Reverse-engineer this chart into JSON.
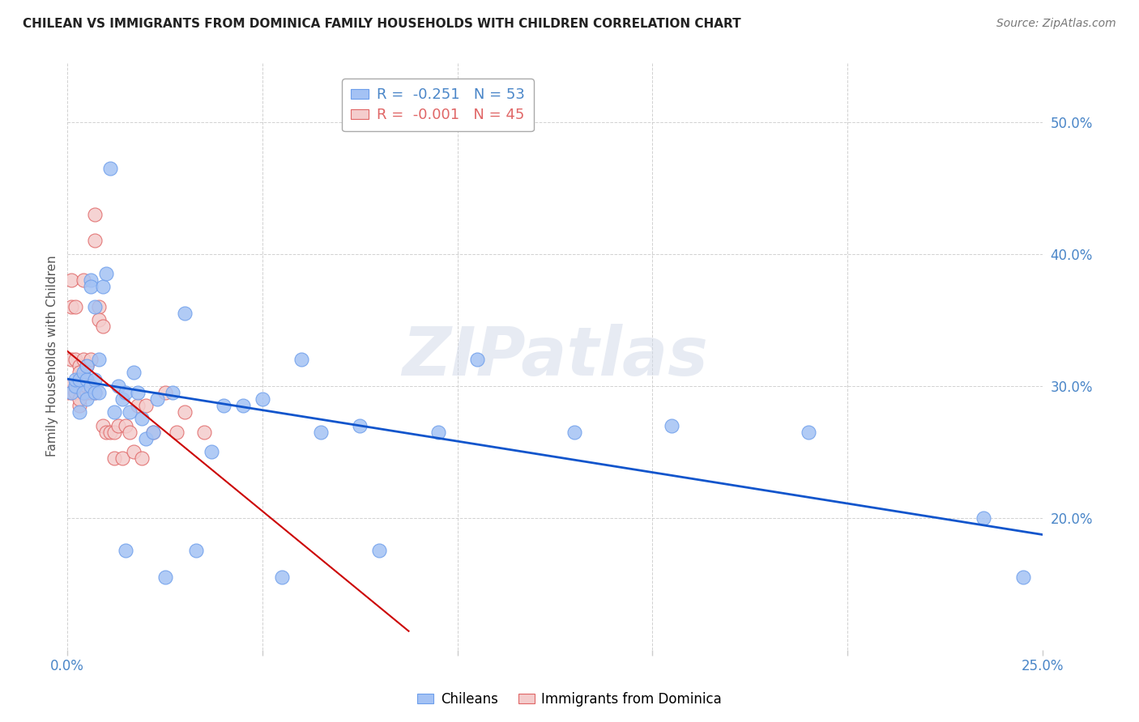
{
  "title": "CHILEAN VS IMMIGRANTS FROM DOMINICA FAMILY HOUSEHOLDS WITH CHILDREN CORRELATION CHART",
  "source": "Source: ZipAtlas.com",
  "ylabel": "Family Households with Children",
  "ytick_labels": [
    "20.0%",
    "30.0%",
    "40.0%",
    "50.0%"
  ],
  "ytick_values": [
    0.2,
    0.3,
    0.4,
    0.5
  ],
  "xlim": [
    0.0,
    0.25
  ],
  "ylim": [
    0.1,
    0.545
  ],
  "chilean_color": "#a4c2f4",
  "dominica_color": "#f4cccc",
  "chilean_dot_edge": "#6d9eeb",
  "dominica_dot_edge": "#e06666",
  "chilean_line_color": "#1155cc",
  "dominica_line_color": "#cc0000",
  "legend_r_chilean": "R = ",
  "legend_r_chilean_val": "-0.251",
  "legend_n_chilean": "N = 53",
  "legend_r_dominica": "R = ",
  "legend_r_dominica_val": "-0.001",
  "legend_n_dominica": "N = 45",
  "watermark": "ZIPatlas",
  "axis_color": "#4a86c8",
  "grid_color": "#cccccc",
  "chilean_x": [
    0.001,
    0.002,
    0.002,
    0.003,
    0.003,
    0.004,
    0.004,
    0.005,
    0.005,
    0.005,
    0.006,
    0.006,
    0.006,
    0.007,
    0.007,
    0.007,
    0.008,
    0.008,
    0.009,
    0.01,
    0.011,
    0.012,
    0.013,
    0.014,
    0.015,
    0.015,
    0.016,
    0.017,
    0.018,
    0.019,
    0.02,
    0.022,
    0.023,
    0.025,
    0.027,
    0.03,
    0.033,
    0.037,
    0.04,
    0.045,
    0.05,
    0.055,
    0.06,
    0.065,
    0.075,
    0.08,
    0.095,
    0.105,
    0.13,
    0.155,
    0.19,
    0.235,
    0.245
  ],
  "chilean_y": [
    0.295,
    0.3,
    0.305,
    0.28,
    0.305,
    0.31,
    0.295,
    0.305,
    0.315,
    0.29,
    0.38,
    0.375,
    0.3,
    0.36,
    0.305,
    0.295,
    0.32,
    0.295,
    0.375,
    0.385,
    0.465,
    0.28,
    0.3,
    0.29,
    0.295,
    0.175,
    0.28,
    0.31,
    0.295,
    0.275,
    0.26,
    0.265,
    0.29,
    0.155,
    0.295,
    0.355,
    0.175,
    0.25,
    0.285,
    0.285,
    0.29,
    0.155,
    0.32,
    0.265,
    0.27,
    0.175,
    0.265,
    0.32,
    0.265,
    0.27,
    0.265,
    0.2,
    0.155
  ],
  "dominica_x": [
    0.0,
    0.0,
    0.001,
    0.001,
    0.001,
    0.001,
    0.002,
    0.002,
    0.002,
    0.003,
    0.003,
    0.003,
    0.003,
    0.004,
    0.004,
    0.004,
    0.005,
    0.005,
    0.005,
    0.006,
    0.006,
    0.007,
    0.007,
    0.007,
    0.008,
    0.008,
    0.009,
    0.009,
    0.01,
    0.011,
    0.012,
    0.012,
    0.013,
    0.014,
    0.015,
    0.016,
    0.017,
    0.018,
    0.019,
    0.02,
    0.022,
    0.025,
    0.028,
    0.03,
    0.035
  ],
  "dominica_y": [
    0.295,
    0.3,
    0.295,
    0.32,
    0.36,
    0.38,
    0.295,
    0.32,
    0.36,
    0.285,
    0.315,
    0.29,
    0.31,
    0.295,
    0.32,
    0.38,
    0.295,
    0.315,
    0.3,
    0.32,
    0.295,
    0.43,
    0.41,
    0.295,
    0.36,
    0.35,
    0.27,
    0.345,
    0.265,
    0.265,
    0.245,
    0.265,
    0.27,
    0.245,
    0.27,
    0.265,
    0.25,
    0.285,
    0.245,
    0.285,
    0.265,
    0.295,
    0.265,
    0.28,
    0.265
  ]
}
